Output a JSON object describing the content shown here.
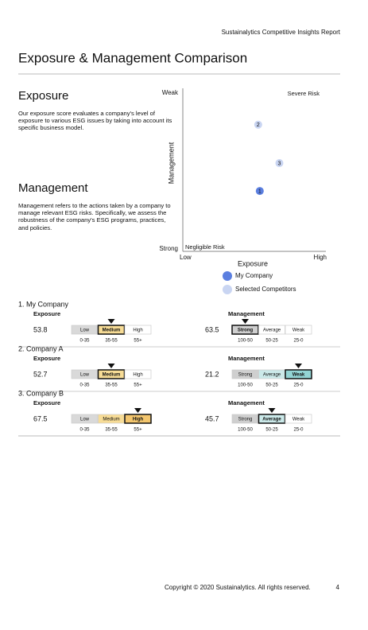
{
  "header": {
    "report": "Sustainalytics Competitive Insights Report",
    "title": "Exposure & Management Comparison"
  },
  "sections": [
    {
      "heading": "Exposure",
      "text": "Our exposure score evaluates a company's level of exposure to various ESG issues by taking into account its specific business model."
    },
    {
      "heading": "Management",
      "text": "Management refers to the actions taken by a company to manage relevant ESG risks. Specifically, we assess the robustness of the company's ESG programs, practices, and policies."
    }
  ],
  "chart_data": {
    "type": "scatter",
    "x_label": "Exposure",
    "y_label": "Management",
    "x_end_labels": [
      "Low",
      "High"
    ],
    "y_end_labels": [
      "Strong",
      "Weak"
    ],
    "corner_labels": {
      "top_right": "Severe Risk",
      "bottom_left": "Negligible Risk"
    },
    "xlim": [
      0,
      100
    ],
    "ylim": [
      100,
      0
    ],
    "series": [
      {
        "name": "My Company",
        "color": "#5b7fe0",
        "x": [
          53.8
        ],
        "values": [
          63.5
        ],
        "point_labels": [
          "1"
        ]
      },
      {
        "name": "Selected Competitors",
        "color": "#c9d5f2",
        "x": [
          52.7,
          67.5
        ],
        "values": [
          21.2,
          45.7
        ],
        "point_labels": [
          "2",
          "3"
        ]
      }
    ]
  },
  "scales": {
    "exposure": {
      "title": "Exposure",
      "levels": [
        "Low",
        "Medium",
        "High"
      ],
      "ranges": [
        "0-35",
        "35-55",
        "55+"
      ],
      "colors": [
        "#d9d9d9",
        "#f7dc96",
        "#f3c66e"
      ]
    },
    "management": {
      "title": "Management",
      "levels": [
        "Strong",
        "Average",
        "Weak"
      ],
      "ranges": [
        "100-50",
        "50-25",
        "25-0"
      ],
      "colors": [
        "#cfcfcf",
        "#cbe9e9",
        "#93d4d4"
      ]
    }
  },
  "companies": [
    "1. My Company",
    "2. Company A",
    "3. Company B"
  ],
  "footer": {
    "copyright": "Copyright © 2020 Sustainalytics. All rights reserved.",
    "page": "4"
  }
}
